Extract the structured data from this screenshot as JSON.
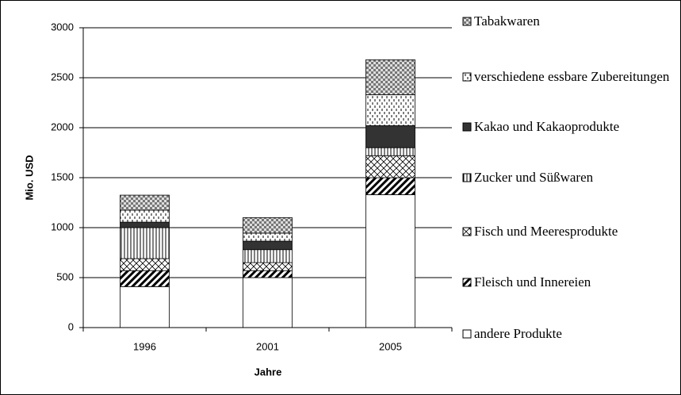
{
  "chart_data": {
    "type": "stacked_bar",
    "x_label": "Jahre",
    "y_label": "Mio. USD",
    "categories": [
      "1996",
      "2001",
      "2005"
    ],
    "series": [
      {
        "name": "andere Produkte",
        "pattern": "none",
        "color": "#ffffff",
        "values": [
          410,
          500,
          1330
        ]
      },
      {
        "name": "Fleisch und Innereien",
        "pattern": "diagonal",
        "color": "#000000",
        "values": [
          160,
          70,
          170
        ]
      },
      {
        "name": "Fisch und Meeresprodukte",
        "pattern": "crosshatch",
        "color": "#000000",
        "values": [
          120,
          80,
          220
        ]
      },
      {
        "name": "Zucker und Süßwaren",
        "pattern": "vertical",
        "color": "#000000",
        "values": [
          310,
          130,
          80
        ]
      },
      {
        "name": "Kakao und Kakaoprodukte",
        "pattern": "solid",
        "color": "#333333",
        "values": [
          55,
          85,
          220
        ]
      },
      {
        "name": "verschiedene essbare Zubereitungen",
        "pattern": "dashes",
        "color": "#000000",
        "values": [
          120,
          80,
          310
        ]
      },
      {
        "name": "Tabakwaren",
        "pattern": "checker",
        "color": "#888888",
        "values": [
          150,
          155,
          350
        ]
      }
    ],
    "ylim": [
      0,
      3000
    ],
    "yticks": [
      0,
      500,
      1000,
      1500,
      2000,
      2500,
      3000
    ],
    "grid": true,
    "legend": "right"
  }
}
